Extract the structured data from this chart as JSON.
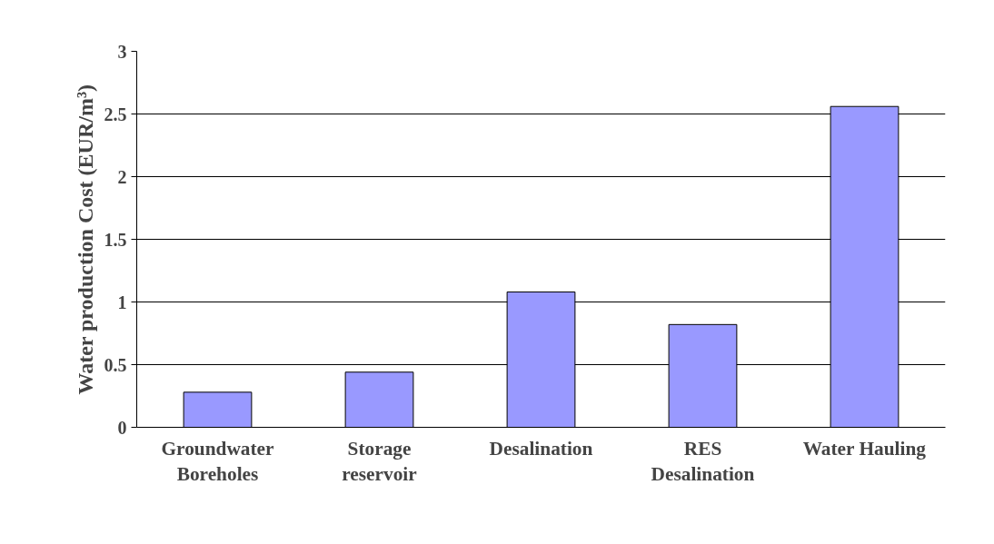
{
  "chart_data": {
    "type": "bar",
    "ylabel": "Water production Cost (EUR/m³)",
    "categories": [
      "Groundwater\nBoreholes",
      "Storage\nreservoir",
      "Desalination",
      "RES\nDesalination",
      "Water Hauling"
    ],
    "values": [
      0.28,
      0.44,
      1.08,
      0.82,
      2.56
    ],
    "color": "#9999ff",
    "ylim": [
      0,
      3
    ],
    "yticks": [
      0,
      0.5,
      1,
      1.5,
      2,
      2.5,
      3
    ],
    "grid": "y"
  }
}
